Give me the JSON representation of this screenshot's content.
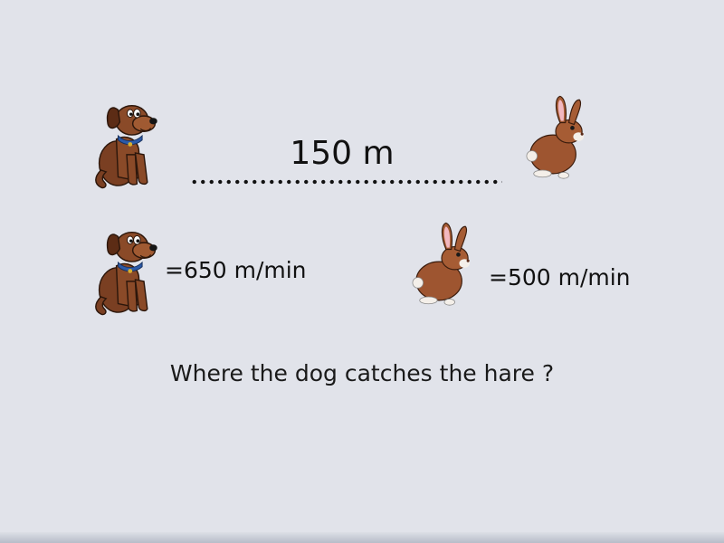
{
  "problem": {
    "distance_label": "150 m",
    "dog_speed_label": "=650 m/min",
    "hare_speed_label": "=500 m/min",
    "question": "Where the dog catches the hare ?"
  },
  "illustrations": {
    "dog_icon": "dog-icon",
    "hare_icon": "hare-icon"
  },
  "colors": {
    "background": "#e1e3ea",
    "dog_brown": "#7a3f22",
    "hare_brown": "#9e5530",
    "dog_collar": "#2c5aa8",
    "hare_ear_inner": "#f2b8c0"
  }
}
